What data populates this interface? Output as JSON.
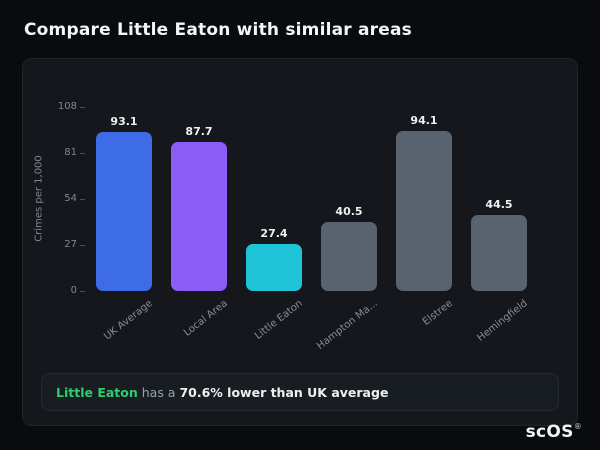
{
  "page": {
    "title": "Compare Little Eaton with similar areas"
  },
  "theme": {
    "accent_green": "#2ecc71",
    "bar_blue": "#3e6ce6",
    "bar_purple": "#8b5cf6",
    "bar_cyan": "#20c4d9",
    "bar_gray": "#59636f",
    "card_background": "#15171c",
    "page_background": "#0a0b0e"
  },
  "callout": {
    "highlight": "Little Eaton",
    "middle": " has a ",
    "bold": "70.6% lower than UK average"
  },
  "logo": {
    "text": "scOS",
    "reg": "®"
  },
  "chart_data": {
    "type": "bar",
    "title": "",
    "categories": [
      "UK Average",
      "Local Area",
      "Little Eaton",
      "Hampton Ma...",
      "Elstree",
      "Hemingfield"
    ],
    "values": [
      93.1,
      87.7,
      27.4,
      40.5,
      94.1,
      44.5
    ],
    "bar_colors": [
      "#3e6ce6",
      "#8b5cf6",
      "#20c4d9",
      "#59636f",
      "#59636f",
      "#59636f"
    ],
    "xlabel": "",
    "ylabel": "Crimes per 1,000",
    "yticks": [
      0,
      27,
      54,
      81,
      108
    ],
    "ylim": [
      0,
      108
    ],
    "grid": false,
    "legend": false
  }
}
